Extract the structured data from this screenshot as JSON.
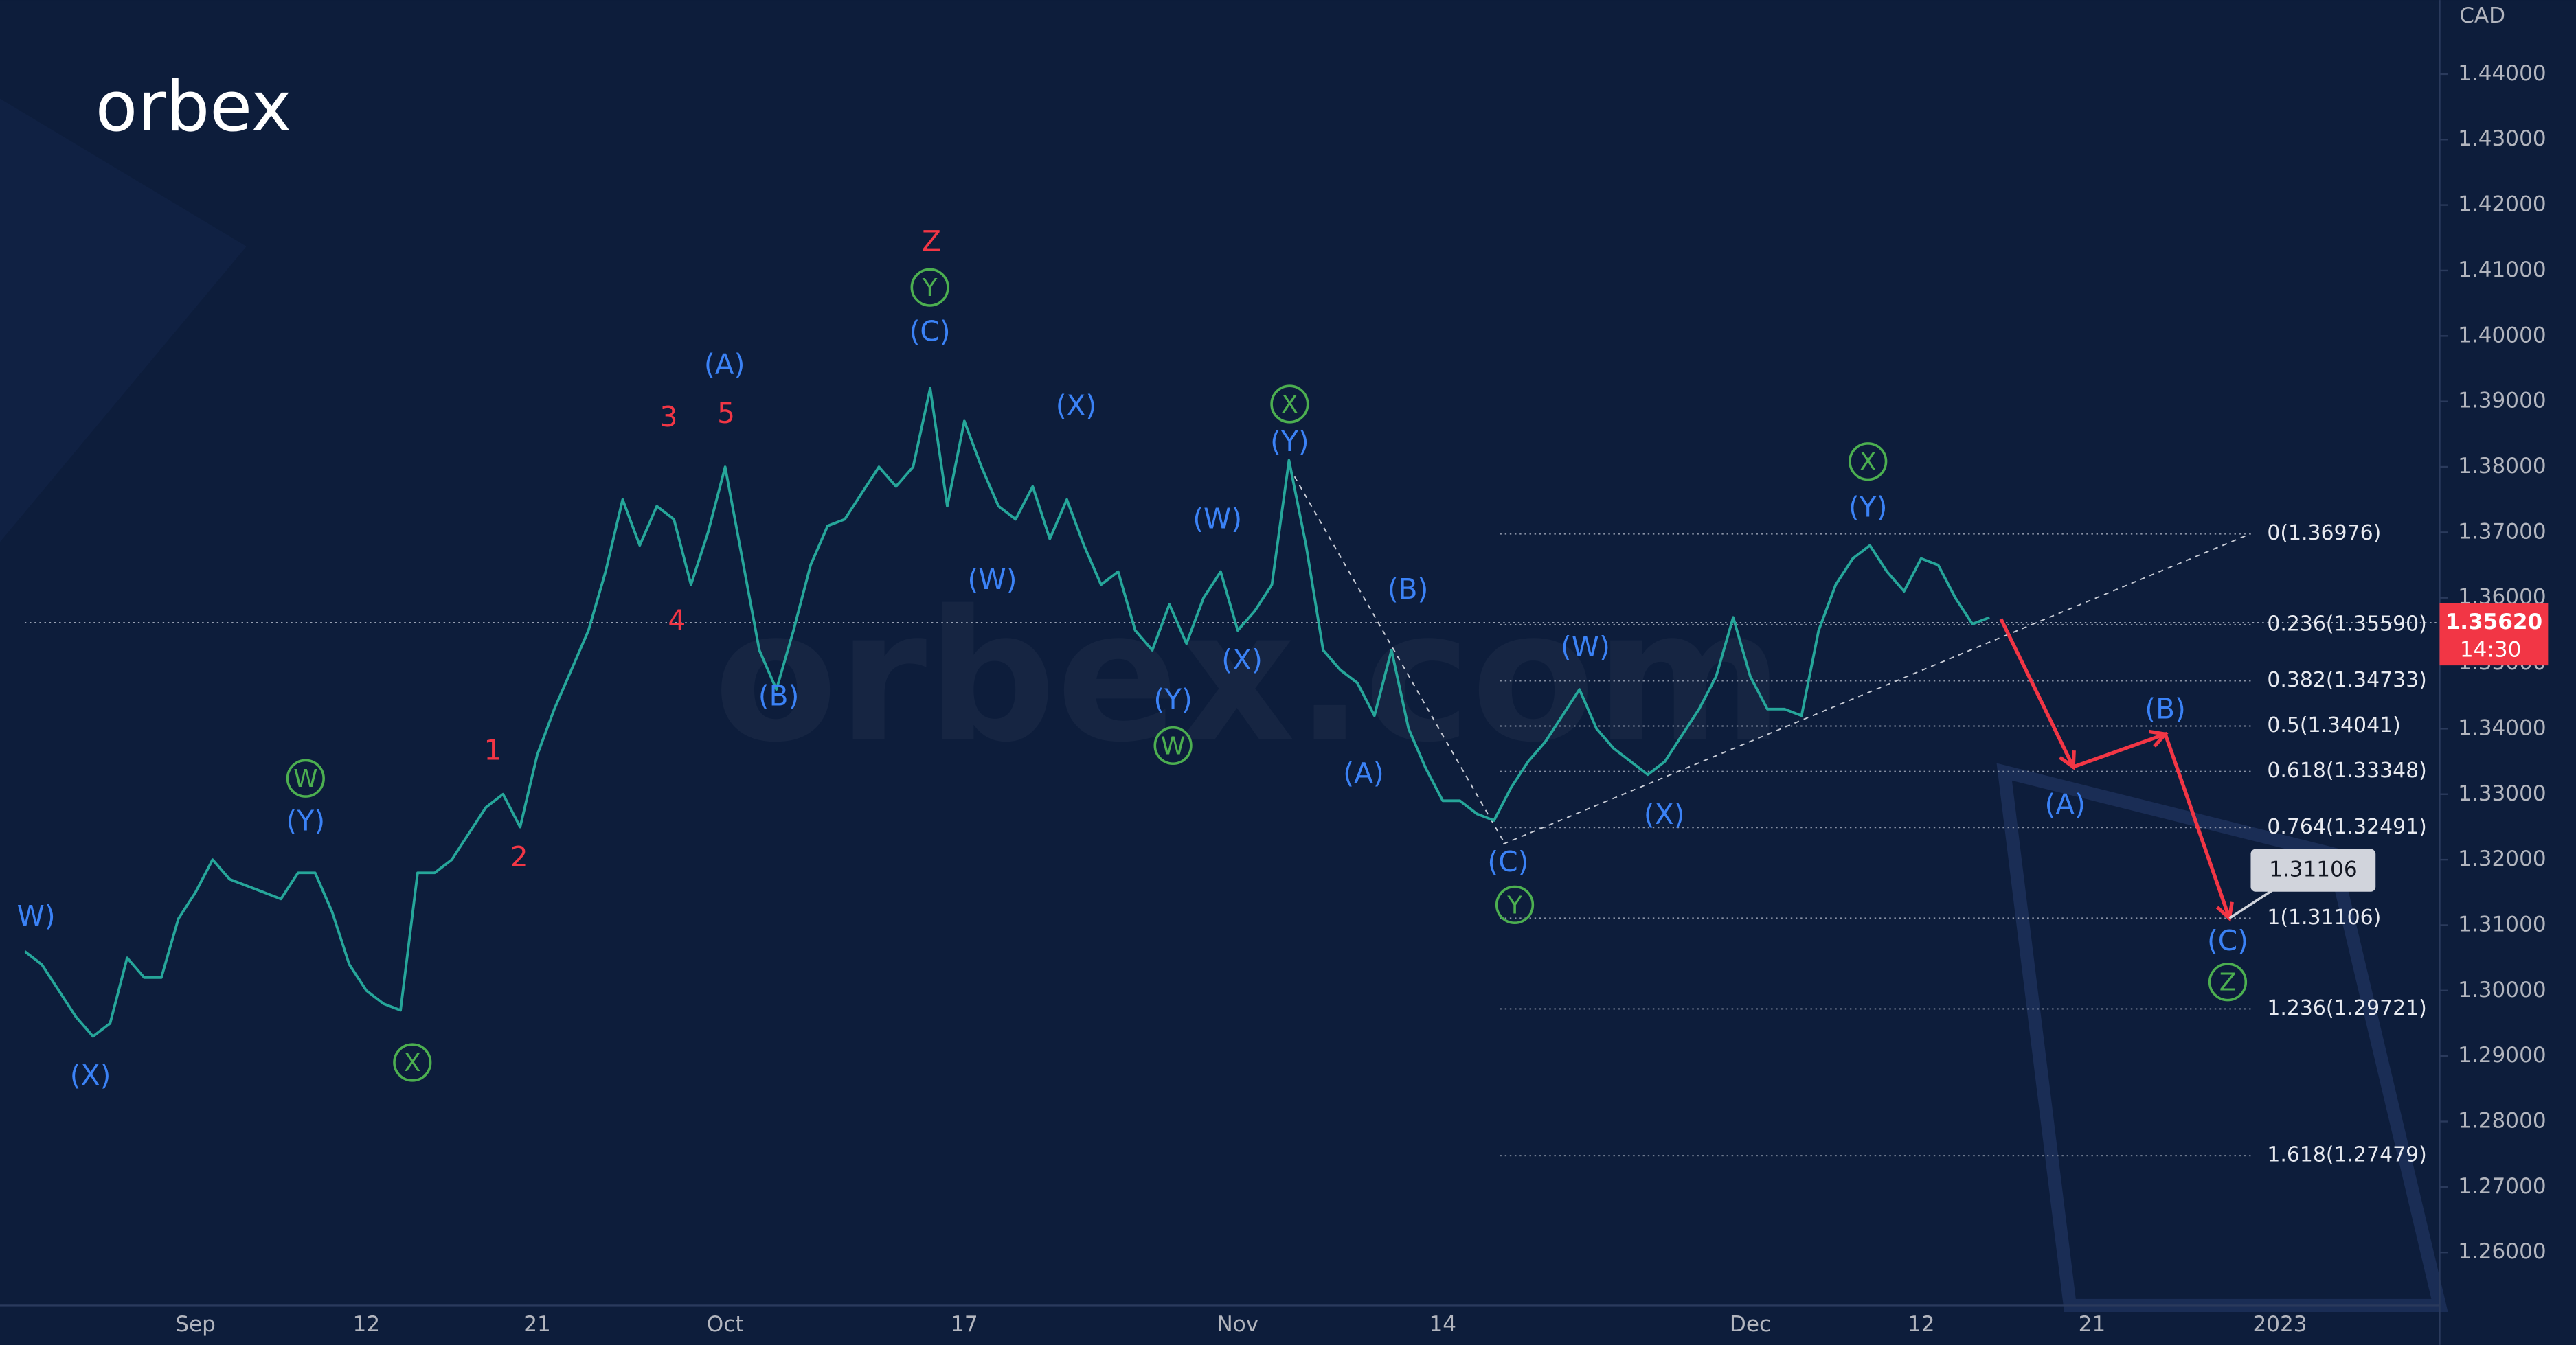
{
  "chart_data": {
    "type": "line",
    "currency": "CAD",
    "logo": "orbex",
    "watermark": "orbex.com",
    "color": "#26a69a",
    "grid": false,
    "categories": [
      null,
      null,
      null,
      null,
      null,
      null,
      null,
      null,
      null,
      null,
      "Sep",
      null,
      null,
      null,
      null,
      null,
      null,
      null,
      null,
      null,
      "12",
      null,
      null,
      null,
      null,
      null,
      null,
      null,
      null,
      null,
      "21",
      null,
      null,
      null,
      null,
      null,
      null,
      null,
      null,
      null,
      null,
      "Oct",
      null,
      null,
      null,
      null,
      null,
      null,
      null,
      null,
      null,
      null,
      null,
      null,
      null,
      "17",
      null,
      null,
      null,
      null,
      null,
      null,
      null,
      null,
      null,
      null,
      null,
      null,
      null,
      null,
      null,
      "Nov",
      null,
      null,
      null,
      null,
      null,
      null,
      null,
      null,
      null,
      null,
      null,
      "14",
      null,
      null,
      null,
      null,
      null,
      null,
      null,
      null,
      null,
      null,
      null,
      null,
      null,
      null,
      null,
      null,
      null,
      "Dec",
      null,
      null,
      null,
      null,
      null,
      null,
      null,
      null,
      null,
      "12",
      null,
      null,
      null,
      null,
      null,
      null,
      null,
      null,
      null,
      "21",
      null,
      null,
      null,
      null,
      null,
      null,
      null,
      null,
      null,
      null,
      "2023"
    ],
    "values": [
      1.306,
      1.304,
      1.3,
      1.296,
      1.293,
      1.295,
      1.305,
      1.302,
      1.302,
      1.311,
      1.315,
      1.32,
      1.317,
      1.316,
      1.315,
      1.314,
      1.318,
      1.318,
      1.312,
      1.304,
      1.3,
      1.298,
      1.297,
      1.318,
      1.318,
      1.32,
      1.324,
      1.328,
      1.33,
      1.325,
      1.336,
      1.343,
      1.349,
      1.355,
      1.364,
      1.375,
      1.368,
      1.374,
      1.372,
      1.362,
      1.37,
      1.38,
      1.366,
      1.352,
      1.346,
      1.355,
      1.365,
      1.371,
      1.372,
      1.376,
      1.38,
      1.377,
      1.38,
      1.392,
      1.374,
      1.387,
      1.38,
      1.374,
      1.372,
      1.377,
      1.369,
      1.375,
      1.368,
      1.362,
      1.364,
      1.355,
      1.352,
      1.359,
      1.353,
      1.36,
      1.364,
      1.355,
      1.358,
      1.362,
      1.381,
      1.368,
      1.352,
      1.349,
      1.347,
      1.342,
      1.352,
      1.34,
      1.334,
      1.329,
      1.329,
      1.327,
      1.326,
      1.331,
      1.335,
      1.338,
      1.342,
      1.346,
      1.34,
      1.337,
      1.335,
      1.333,
      1.335,
      1.339,
      1.343,
      1.348,
      1.357,
      1.348,
      1.343,
      1.343,
      1.342,
      1.355,
      1.362,
      1.366,
      1.368,
      1.364,
      1.361,
      1.366,
      1.365,
      1.36,
      1.356,
      1.357,
      null,
      null,
      null,
      null,
      null,
      null,
      null,
      null,
      null,
      null,
      null,
      null,
      null,
      null,
      null,
      null,
      null
    ],
    "ylim": [
      1.2519,
      1.4513
    ],
    "yticks": [
      {
        "value": 1.26,
        "label": "1.26000"
      },
      {
        "value": 1.27,
        "label": "1.27000"
      },
      {
        "value": 1.28,
        "label": "1.28000"
      },
      {
        "value": 1.29,
        "label": "1.29000"
      },
      {
        "value": 1.3,
        "label": "1.30000"
      },
      {
        "value": 1.31,
        "label": "1.31000"
      },
      {
        "value": 1.32,
        "label": "1.32000"
      },
      {
        "value": 1.33,
        "label": "1.33000"
      },
      {
        "value": 1.34,
        "label": "1.34000"
      },
      {
        "value": 1.35,
        "label": "1.35000"
      },
      {
        "value": 1.36,
        "label": "1.36000"
      },
      {
        "value": 1.37,
        "label": "1.37000"
      },
      {
        "value": 1.38,
        "label": "1.38000"
      },
      {
        "value": 1.39,
        "label": "1.39000"
      },
      {
        "value": 1.4,
        "label": "1.40000"
      },
      {
        "value": 1.41,
        "label": "1.41000"
      },
      {
        "value": 1.42,
        "label": "1.42000"
      },
      {
        "value": 1.43,
        "label": "1.43000"
      },
      {
        "value": 1.44,
        "label": "1.44000"
      }
    ],
    "fib_levels": [
      {
        "value": 1.36976,
        "label": "0(1.36976)"
      },
      {
        "value": 1.3559,
        "label": "0.236(1.35590)"
      },
      {
        "value": 1.34733,
        "label": "0.382(1.34733)"
      },
      {
        "value": 1.34041,
        "label": "0.5(1.34041)"
      },
      {
        "value": 1.33348,
        "label": "0.618(1.33348)"
      },
      {
        "value": 1.32491,
        "label": "0.764(1.32491)"
      },
      {
        "value": 1.31106,
        "label": "1(1.31106)"
      },
      {
        "value": 1.29721,
        "label": "1.236(1.29721)"
      },
      {
        "value": 1.27479,
        "label": "1.618(1.27479)"
      }
    ],
    "current_price": {
      "value": 1.3562,
      "label": "1.35620",
      "time": "14:30"
    },
    "price_tag": {
      "value": 1.31106,
      "label": "1.31106"
    },
    "wave_labels": [
      {
        "text": "W)",
        "color": "#3b82f6"
      },
      {
        "text": "(X)",
        "color": "#3b82f6"
      },
      {
        "text": "W",
        "color": "#4caf50",
        "circled": true
      },
      {
        "text": "(Y)",
        "color": "#3b82f6"
      },
      {
        "text": "X",
        "color": "#4caf50",
        "circled": true
      },
      {
        "text": "1",
        "color": "#f23645"
      },
      {
        "text": "2",
        "color": "#f23645"
      },
      {
        "text": "3",
        "color": "#f23645"
      },
      {
        "text": "4",
        "color": "#f23645"
      },
      {
        "text": "5",
        "color": "#f23645"
      },
      {
        "text": "(A)",
        "color": "#3b82f6"
      },
      {
        "text": "(B)",
        "color": "#3b82f6"
      },
      {
        "text": "Z",
        "color": "#f23645"
      },
      {
        "text": "Y",
        "color": "#4caf50",
        "circled": true
      },
      {
        "text": "(C)",
        "color": "#3b82f6"
      },
      {
        "text": "(X)",
        "color": "#3b82f6"
      },
      {
        "text": "(W)",
        "color": "#3b82f6"
      },
      {
        "text": "(W)",
        "color": "#3b82f6"
      },
      {
        "text": "(X)",
        "color": "#3b82f6"
      },
      {
        "text": "(Y)",
        "color": "#3b82f6"
      },
      {
        "text": "W",
        "color": "#4caf50",
        "circled": true
      },
      {
        "text": "X",
        "color": "#4caf50",
        "circled": true
      },
      {
        "text": "(Y)",
        "color": "#3b82f6"
      },
      {
        "text": "(B)",
        "color": "#3b82f6"
      },
      {
        "text": "(A)",
        "color": "#3b82f6"
      },
      {
        "text": "(C)",
        "color": "#3b82f6"
      },
      {
        "text": "Y",
        "color": "#4caf50",
        "circled": true
      },
      {
        "text": "(W)",
        "color": "#3b82f6"
      },
      {
        "text": "(X)",
        "color": "#3b82f6"
      },
      {
        "text": "X",
        "color": "#4caf50",
        "circled": true
      },
      {
        "text": "(Y)",
        "color": "#3b82f6"
      },
      {
        "text": "(A)",
        "color": "#3b82f6"
      },
      {
        "text": "(B)",
        "color": "#3b82f6"
      },
      {
        "text": "(C)",
        "color": "#3b82f6"
      },
      {
        "text": "Z",
        "color": "#4caf50",
        "circled": true
      }
    ]
  }
}
